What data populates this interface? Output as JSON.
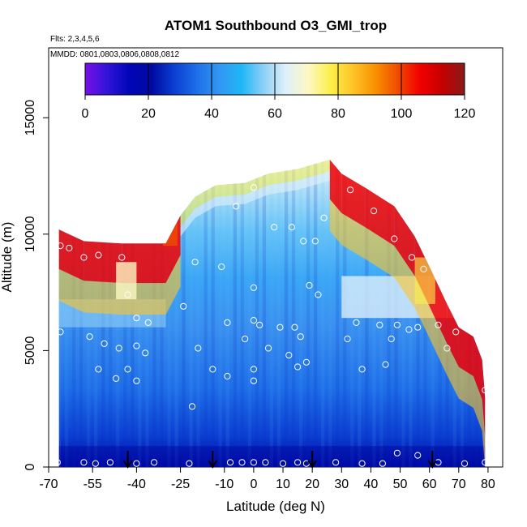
{
  "chart_data": {
    "type": "heatmap",
    "title": "ATOM1 Southbound O3_GMI_trop",
    "subtitle_flights": "Flts: 2,3,4,5,6",
    "subtitle_dates": "MMDD: 0801,0803,0806,0808,0812",
    "xlabel": "Latitude (deg N)",
    "ylabel": "Altitude (m)",
    "xlim": [
      -70,
      85
    ],
    "ylim": [
      0,
      18000
    ],
    "xticks": [
      -70,
      -55,
      -40,
      -25,
      -10,
      0,
      10,
      20,
      30,
      40,
      50,
      60,
      70,
      80
    ],
    "yticks": [
      0,
      5000,
      10000,
      15000
    ],
    "colorbar": {
      "min": 0,
      "max": 120,
      "ticks": [
        0,
        20,
        40,
        60,
        80,
        100,
        120
      ],
      "colors": [
        "#7a10e8",
        "#2f14d8",
        "#0006b8",
        "#000aa0",
        "#0b3fd2",
        "#1e6ee8",
        "#3396f3",
        "#1fb6f7",
        "#8fd0f6",
        "#dff0fa",
        "#fdf7c3",
        "#fbf04b",
        "#fec428",
        "#f89100",
        "#f04b00",
        "#f20000",
        "#c40000",
        "#8b1a1a"
      ]
    },
    "ceiling_profile": [
      {
        "lat": -66.5,
        "alt": 10200
      },
      {
        "lat": -58,
        "alt": 9700
      },
      {
        "lat": -45,
        "alt": 9600
      },
      {
        "lat": -30,
        "alt": 9600
      },
      {
        "lat": -25,
        "alt": 10800
      },
      {
        "lat": -20,
        "alt": 11600
      },
      {
        "lat": -13,
        "alt": 12100
      },
      {
        "lat": -3,
        "alt": 12200
      },
      {
        "lat": 5,
        "alt": 12600
      },
      {
        "lat": 15,
        "alt": 12800
      },
      {
        "lat": 26,
        "alt": 13200
      },
      {
        "lat": 30,
        "alt": 12600
      },
      {
        "lat": 38,
        "alt": 12000
      },
      {
        "lat": 48,
        "alt": 11200
      },
      {
        "lat": 55,
        "alt": 9900
      },
      {
        "lat": 60,
        "alt": 8600
      },
      {
        "lat": 66,
        "alt": 7000
      },
      {
        "lat": 70,
        "alt": 6000
      },
      {
        "lat": 75,
        "alt": 5600
      },
      {
        "lat": 78,
        "alt": 4600
      },
      {
        "lat": 79,
        "alt": 3000
      }
    ],
    "flight_points": [
      {
        "lat": -66,
        "alt": 9500
      },
      {
        "lat": -63,
        "alt": 9400
      },
      {
        "lat": -58,
        "alt": 9000
      },
      {
        "lat": -53,
        "alt": 9100
      },
      {
        "lat": -45,
        "alt": 9000
      },
      {
        "lat": -43,
        "alt": 7400
      },
      {
        "lat": -40,
        "alt": 6400
      },
      {
        "lat": -36,
        "alt": 6200
      },
      {
        "lat": -24,
        "alt": 6900
      },
      {
        "lat": -20,
        "alt": 8800
      },
      {
        "lat": -11,
        "alt": 8600
      },
      {
        "lat": -6,
        "alt": 11200
      },
      {
        "lat": 0,
        "alt": 12000
      },
      {
        "lat": 7,
        "alt": 10300
      },
      {
        "lat": 13,
        "alt": 10300
      },
      {
        "lat": 17,
        "alt": 9700
      },
      {
        "lat": 21,
        "alt": 9700
      },
      {
        "lat": 24,
        "alt": 10700
      },
      {
        "lat": 33,
        "alt": 11900
      },
      {
        "lat": 41,
        "alt": 11000
      },
      {
        "lat": 48,
        "alt": 9800
      },
      {
        "lat": 54,
        "alt": 9000
      },
      {
        "lat": 58,
        "alt": 8500
      },
      {
        "lat": 67,
        "alt": 7200
      },
      {
        "lat": -66,
        "alt": 5800
      },
      {
        "lat": -56,
        "alt": 5600
      },
      {
        "lat": -51,
        "alt": 5300
      },
      {
        "lat": -46,
        "alt": 5100
      },
      {
        "lat": -40,
        "alt": 5200
      },
      {
        "lat": -37,
        "alt": 4900
      },
      {
        "lat": -53,
        "alt": 4200
      },
      {
        "lat": -47,
        "alt": 3800
      },
      {
        "lat": -43,
        "alt": 4200
      },
      {
        "lat": -40,
        "alt": 3700
      },
      {
        "lat": -19,
        "alt": 5100
      },
      {
        "lat": -14,
        "alt": 4200
      },
      {
        "lat": -9,
        "alt": 6200
      },
      {
        "lat": -3,
        "alt": 5500
      },
      {
        "lat": -9,
        "alt": 3900
      },
      {
        "lat": 0,
        "alt": 6300
      },
      {
        "lat": 2,
        "alt": 6100
      },
      {
        "lat": 0,
        "alt": 4200
      },
      {
        "lat": 0,
        "alt": 3700
      },
      {
        "lat": 5,
        "alt": 5100
      },
      {
        "lat": 9,
        "alt": 6000
      },
      {
        "lat": 12,
        "alt": 4800
      },
      {
        "lat": 14,
        "alt": 6000
      },
      {
        "lat": 16,
        "alt": 5600
      },
      {
        "lat": 15,
        "alt": 4300
      },
      {
        "lat": 18,
        "alt": 4500
      },
      {
        "lat": 0,
        "alt": 7700
      },
      {
        "lat": 19,
        "alt": 7800
      },
      {
        "lat": 22,
        "alt": 7400
      },
      {
        "lat": 35,
        "alt": 6200
      },
      {
        "lat": 43,
        "alt": 6100
      },
      {
        "lat": 49,
        "alt": 6100
      },
      {
        "lat": 53,
        "alt": 5900
      },
      {
        "lat": 56,
        "alt": 6000
      },
      {
        "lat": 63,
        "alt": 6100
      },
      {
        "lat": 69,
        "alt": 5800
      },
      {
        "lat": 47,
        "alt": 5500
      },
      {
        "lat": 37,
        "alt": 4200
      },
      {
        "lat": 45,
        "alt": 4400
      },
      {
        "lat": 66,
        "alt": 5100
      },
      {
        "lat": 79,
        "alt": 3300
      },
      {
        "lat": 32,
        "alt": 5500
      },
      {
        "lat": -21,
        "alt": 2600
      },
      {
        "lat": -67,
        "alt": 200
      },
      {
        "lat": -58,
        "alt": 200
      },
      {
        "lat": -54,
        "alt": 150
      },
      {
        "lat": -49,
        "alt": 200
      },
      {
        "lat": -40,
        "alt": 150
      },
      {
        "lat": -34,
        "alt": 200
      },
      {
        "lat": -22,
        "alt": 150
      },
      {
        "lat": -8,
        "alt": 200
      },
      {
        "lat": -4,
        "alt": 200
      },
      {
        "lat": 0,
        "alt": 200
      },
      {
        "lat": 4,
        "alt": 200
      },
      {
        "lat": 10,
        "alt": 150
      },
      {
        "lat": 15,
        "alt": 200
      },
      {
        "lat": 18,
        "alt": 150
      },
      {
        "lat": 28,
        "alt": 200
      },
      {
        "lat": 37,
        "alt": 150
      },
      {
        "lat": 44,
        "alt": 150
      },
      {
        "lat": 49,
        "alt": 600
      },
      {
        "lat": 56,
        "alt": 500
      },
      {
        "lat": 63,
        "alt": 200
      },
      {
        "lat": 72,
        "alt": 150
      },
      {
        "lat": 79,
        "alt": 200
      }
    ],
    "markers": [
      {
        "lat": -43
      },
      {
        "lat": -14
      },
      {
        "lat": 20
      },
      {
        "lat": 61
      }
    ]
  }
}
